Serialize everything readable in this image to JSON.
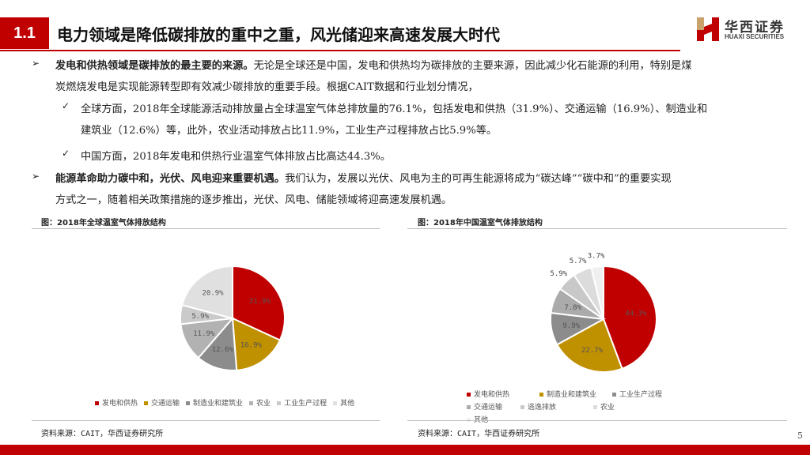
{
  "header": {
    "section": "1.1",
    "title": "电力领域是降低碳排放的重中之重，风光储迎来高速发展大时代",
    "logo_cn": "华西证券",
    "logo_en": "HUAXI SECURITIES"
  },
  "body": {
    "p1_bold": "发电和供热领域是碳排放的最主要的来源。",
    "p1_rest": "无论是全球还是中国，发电和供热均为碳排放的主要来源，因此减少化石能源的利用，特别是煤",
    "p1_line2": "炭燃烧发电是实现能源转型即有效减少碳排放的重要手段。根据CAIT数据和行业划分情况，",
    "c1_line1": "全球方面，2018年全球能源活动排放量占全球温室气体总排放量的76.1%，包括发电和供热（31.9%）、交通运输（16.9%）、制造业和",
    "c1_line2": "建筑业（12.6%）等，此外，农业活动排放占比11.9%，工业生产过程排放占比5.9%等。",
    "c2_line1": "中国方面，2018年发电和供热行业温室气体排放占比高达44.3%。",
    "p2_bold": "能源革命助力碳中和，光伏、风电迎来重要机遇。",
    "p2_rest": "我们认为，发展以光伏、风电为主的可再生能源将成为“碳达峰”“碳中和”的重要实现",
    "p2_line2": "方式之一，随着相关政策措施的逐步推出，光伏、风电、储能领域将迎高速发展机遇。",
    "bullet": "➢",
    "check": "✓"
  },
  "chart_data": [
    {
      "type": "pie",
      "caption": "图：2018年全球温室气体排放结构",
      "source": "资料来源：CAIT，华西证券研究所",
      "categories": [
        "发电和供热",
        "交通运输",
        "制造业和建筑业",
        "农业",
        "工业生产过程",
        "其他"
      ],
      "values": [
        31.9,
        16.9,
        12.6,
        11.9,
        5.9,
        20.9
      ],
      "labels": [
        "31.9%",
        "16.9%",
        "12.6%",
        "11.9%",
        "5.9%",
        "20.9%"
      ],
      "colors": [
        "#C00000",
        "#BF9000",
        "#8C8C8C",
        "#B2B2B2",
        "#CACACA",
        "#E0E0E0"
      ],
      "legend": "bottom"
    },
    {
      "type": "pie",
      "caption": "图：2018年中国温室气体排放结构",
      "source": "资料来源：CAIT，华西证券研究所",
      "categories": [
        "发电和供热",
        "制造业和建筑业",
        "工业生产过程",
        "交通运输",
        "逃逸排放",
        "农业",
        "其他"
      ],
      "values": [
        44.3,
        22.7,
        9.9,
        7.8,
        5.9,
        5.7,
        3.7
      ],
      "labels": [
        "44.3%",
        "22.7%",
        "9.9%",
        "7.8%",
        "5.9%",
        "5.7%",
        "3.7%"
      ],
      "colors": [
        "#C00000",
        "#BF9000",
        "#8C8C8C",
        "#ABABAB",
        "#C8C8C8",
        "#DCDCDC",
        "#EFEFEF"
      ],
      "legend": "bottom"
    }
  ],
  "footer": {
    "page": "5"
  }
}
